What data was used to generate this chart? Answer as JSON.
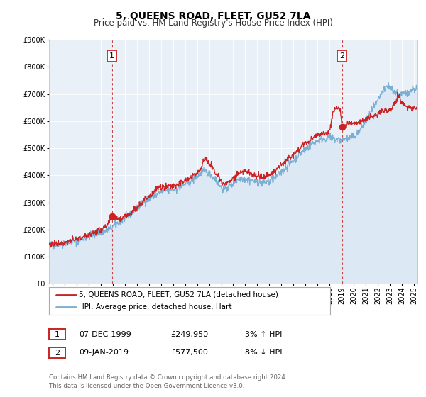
{
  "title": "5, QUEENS ROAD, FLEET, GU52 7LA",
  "subtitle": "Price paid vs. HM Land Registry's House Price Index (HPI)",
  "ylim": [
    0,
    900000
  ],
  "yticks": [
    0,
    100000,
    200000,
    300000,
    400000,
    500000,
    600000,
    700000,
    800000,
    900000
  ],
  "xlim_start": 1994.7,
  "xlim_end": 2025.3,
  "xtick_years": [
    1995,
    1996,
    1997,
    1998,
    1999,
    2000,
    2001,
    2002,
    2003,
    2004,
    2005,
    2006,
    2007,
    2008,
    2009,
    2010,
    2011,
    2012,
    2013,
    2014,
    2015,
    2016,
    2017,
    2018,
    2019,
    2020,
    2021,
    2022,
    2023,
    2024,
    2025
  ],
  "hpi_color": "#7bafd4",
  "price_color": "#cc2222",
  "fill_color": "#dde8f5",
  "background_color": "#eaf0f8",
  "grid_color": "#ffffff",
  "marker1_date": 1999.93,
  "marker1_value": 249950,
  "marker2_date": 2019.03,
  "marker2_value": 577500,
  "legend_label1": "5, QUEENS ROAD, FLEET, GU52 7LA (detached house)",
  "legend_label2": "HPI: Average price, detached house, Hart",
  "table_row1": [
    "1",
    "07-DEC-1999",
    "£249,950",
    "3% ↑ HPI"
  ],
  "table_row2": [
    "2",
    "09-JAN-2019",
    "£577,500",
    "8% ↓ HPI"
  ],
  "footer": "Contains HM Land Registry data © Crown copyright and database right 2024.\nThis data is licensed under the Open Government Licence v3.0.",
  "title_fontsize": 10,
  "subtitle_fontsize": 8.5,
  "tick_fontsize": 7,
  "legend_fontsize": 7.5,
  "annot_fontsize": 8
}
